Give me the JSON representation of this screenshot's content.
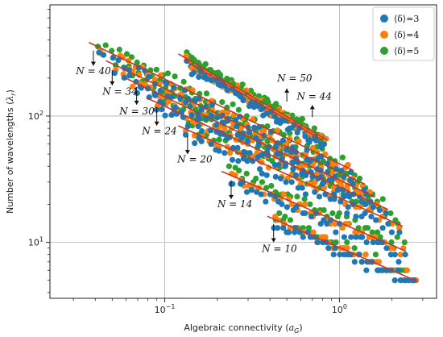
{
  "chart_data": {
    "type": "scatter",
    "xlabel": "Algebraic connectivity (a_G)",
    "ylabel": "Number of wavelengths (λ_r)",
    "xscale": "log",
    "yscale": "log",
    "xlim": [
      0.022,
      3.6
    ],
    "ylim": [
      3.6,
      760
    ],
    "x_ticks": [
      {
        "value": 0.1,
        "base": "10",
        "exp": "−1"
      },
      {
        "value": 1,
        "base": "10",
        "exp": "0"
      }
    ],
    "y_ticks": [
      {
        "value": 10,
        "base": "10",
        "exp": "1"
      },
      {
        "value": 100,
        "base": "10",
        "exp": "2"
      }
    ],
    "grid": true,
    "legend_position": "top-right",
    "series": [
      {
        "name": "⟨δ⟩=3",
        "color": "#1f77b4"
      },
      {
        "name": "⟨δ⟩=4",
        "color": "#ff7f0e"
      },
      {
        "name": "⟨δ⟩=5",
        "color": "#2ca02c"
      }
    ],
    "groups": [
      {
        "N": 10,
        "x_range": [
          0.42,
          2.8
        ],
        "y_at_start": [
          14,
          15,
          16
        ],
        "slope": -0.6
      },
      {
        "N": 14,
        "x_range": [
          0.23,
          2.4
        ],
        "y_at_start": [
          31,
          34,
          38
        ],
        "slope": -0.6
      },
      {
        "N": 20,
        "x_range": [
          0.13,
          2.3
        ],
        "y_at_start": [
          71,
          78,
          86
        ],
        "slope": -0.62
      },
      {
        "N": 24,
        "x_range": [
          0.085,
          1.9
        ],
        "y_at_start": [
          120,
          130,
          145
        ],
        "slope": -0.64
      },
      {
        "N": 30,
        "x_range": [
          0.065,
          1.6
        ],
        "y_at_start": [
          170,
          185,
          205
        ],
        "slope": -0.66
      },
      {
        "N": 34,
        "x_range": [
          0.05,
          1.4
        ],
        "y_at_start": [
          235,
          255,
          280
        ],
        "slope": -0.66
      },
      {
        "N": 40,
        "x_range": [
          0.04,
          1.2
        ],
        "y_at_start": [
          330,
          355,
          390
        ],
        "slope": -0.67
      },
      {
        "N": 44,
        "x_range": [
          0.13,
          0.85
        ],
        "y_at_start": [
          265,
          285,
          305
        ],
        "slope": -0.8
      },
      {
        "N": 50,
        "x_range": [
          0.14,
          0.8
        ],
        "y_at_start": [
          235,
          255,
          275
        ],
        "slope": -0.8
      }
    ],
    "fit_color": "#c0392b",
    "annotations": [
      {
        "text": "N = 40",
        "arrow_x": 0.039,
        "arrow_y_top": 330,
        "arrow_y_bottom": 250,
        "label_x": 0.031,
        "label_y": 215,
        "dir": "down"
      },
      {
        "text": "N = 34",
        "arrow_x": 0.05,
        "arrow_y_top": 232,
        "arrow_y_bottom": 175,
        "label_x": 0.044,
        "label_y": 148,
        "dir": "down"
      },
      {
        "text": "N = 30",
        "arrow_x": 0.069,
        "arrow_y_top": 170,
        "arrow_y_bottom": 123,
        "label_x": 0.055,
        "label_y": 103,
        "dir": "down"
      },
      {
        "text": "N = 24",
        "arrow_x": 0.09,
        "arrow_y_top": 118,
        "arrow_y_bottom": 84,
        "label_x": 0.074,
        "label_y": 72,
        "dir": "down"
      },
      {
        "text": "N = 20",
        "arrow_x": 0.135,
        "arrow_y_top": 70,
        "arrow_y_bottom": 50,
        "label_x": 0.118,
        "label_y": 43,
        "dir": "down"
      },
      {
        "text": "N = 14",
        "arrow_x": 0.24,
        "arrow_y_top": 31,
        "arrow_y_bottom": 22,
        "label_x": 0.2,
        "label_y": 19,
        "dir": "down"
      },
      {
        "text": "N = 10",
        "arrow_x": 0.42,
        "arrow_y_top": 14,
        "arrow_y_bottom": 10,
        "label_x": 0.36,
        "label_y": 8.4,
        "dir": "down"
      },
      {
        "text": "N = 50",
        "arrow_x": 0.5,
        "arrow_y_top": 165,
        "arrow_y_bottom": 130,
        "label_x": 0.44,
        "label_y": 188,
        "dir": "up"
      },
      {
        "text": "N = 44",
        "arrow_x": 0.7,
        "arrow_y_top": 122,
        "arrow_y_bottom": 98,
        "label_x": 0.57,
        "label_y": 135,
        "dir": "up"
      }
    ]
  }
}
